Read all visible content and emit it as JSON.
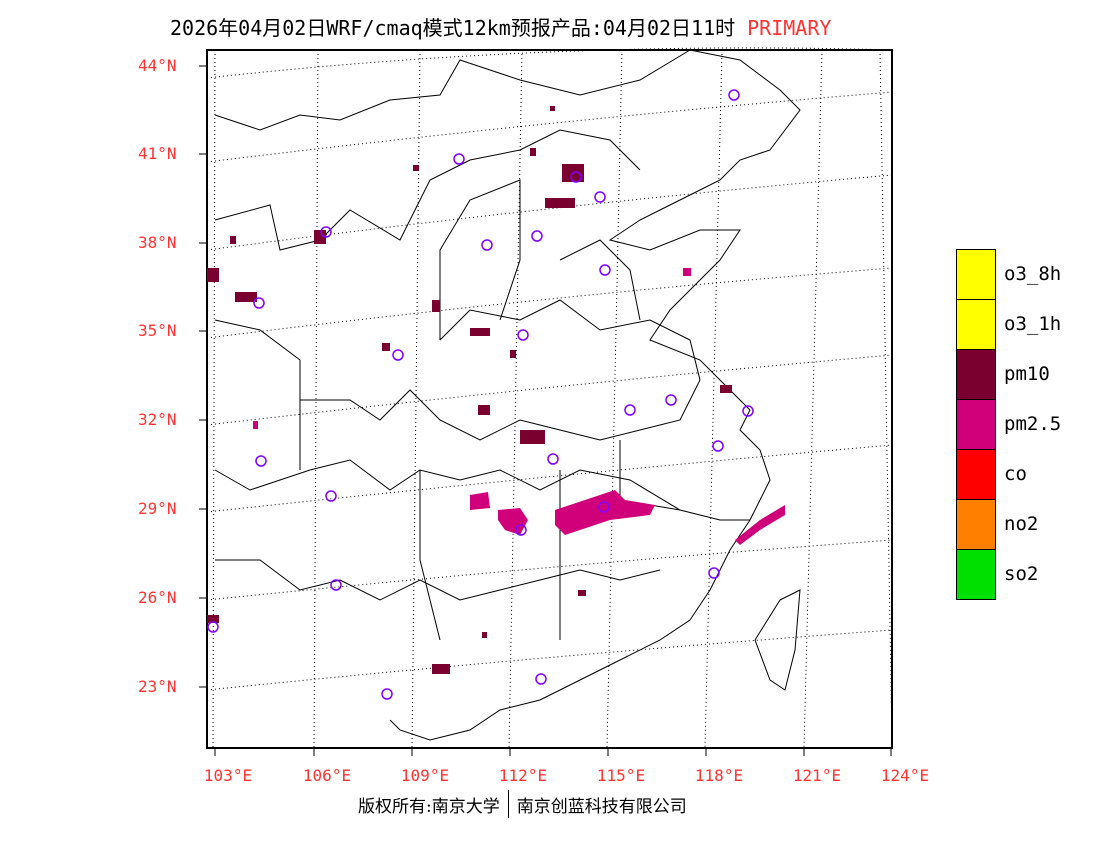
{
  "header": {
    "title": "2026年04月02日WRF/cmaq模式12km预报产品:04月02日11时",
    "tag": "PRIMARY"
  },
  "axes": {
    "lat_labels": [
      "44°N",
      "41°N",
      "38°N",
      "35°N",
      "32°N",
      "29°N",
      "26°N",
      "23°N"
    ],
    "lon_labels": [
      "103°E",
      "106°E",
      "109°E",
      "112°E",
      "115°E",
      "118°E",
      "121°E",
      "124°E"
    ]
  },
  "legend": [
    {
      "label": "o3_8h",
      "color": "#ffff00"
    },
    {
      "label": "o3_1h",
      "color": "#ffff00"
    },
    {
      "label": "pm10",
      "color": "#7a0030"
    },
    {
      "label": "pm2.5",
      "color": "#d0007a"
    },
    {
      "label": "co",
      "color": "#ff0000"
    },
    {
      "label": "no2",
      "color": "#ff8000"
    },
    {
      "label": "so2",
      "color": "#00e000"
    }
  ],
  "footer": {
    "left": "版权所有:南京大学",
    "right": "南京创蓝科技有限公司"
  }
}
